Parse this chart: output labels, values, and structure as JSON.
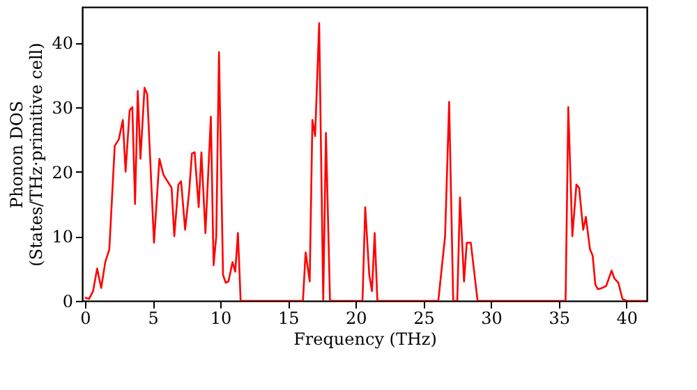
{
  "chart_data": {
    "type": "line",
    "xlabel": "Frequency (THz)",
    "ylabel": "Phonon DOS\n(States/THz·primitive cell)",
    "x": [
      0,
      0.3,
      0.6,
      0.9,
      1.2,
      1.5,
      1.8,
      2.2,
      2.5,
      2.8,
      3.0,
      3.3,
      3.5,
      3.7,
      3.9,
      4.1,
      4.4,
      4.6,
      5.1,
      5.5,
      5.8,
      6.1,
      6.4,
      6.6,
      6.9,
      7.1,
      7.4,
      7.7,
      7.9,
      8.1,
      8.4,
      8.6,
      8.9,
      9.3,
      9.5,
      9.7,
      9.9,
      10.2,
      10.4,
      10.6,
      10.9,
      11.1,
      11.3,
      11.5,
      16.1,
      16.3,
      16.6,
      16.8,
      17.0,
      17.3,
      17.6,
      17.8,
      18.1,
      20.5,
      20.7,
      21.0,
      21.2,
      21.4,
      21.6,
      26.1,
      26.6,
      26.9,
      27.2,
      27.5,
      27.7,
      28.0,
      28.2,
      28.5,
      29.0,
      35.5,
      35.7,
      36.0,
      36.3,
      36.5,
      36.8,
      37.0,
      37.3,
      37.5,
      37.7,
      37.9,
      38.2,
      38.5,
      38.9,
      39.1,
      39.4,
      39.7,
      40.0,
      41.5
    ],
    "series": [
      {
        "color": "#ff0000",
        "values": [
          0.5,
          0.3,
          1.5,
          5,
          2,
          6,
          8,
          24,
          25,
          28,
          20,
          29.5,
          30,
          15,
          32.5,
          22,
          33,
          32,
          9,
          22,
          19.5,
          18.5,
          17.5,
          10,
          18,
          18.5,
          11,
          17,
          22.8,
          23,
          14.5,
          23,
          10.5,
          28.5,
          5.5,
          10,
          38.5,
          4,
          2.8,
          3,
          6,
          4.5,
          10.5,
          0,
          0,
          7.5,
          3,
          28,
          25.5,
          43,
          0,
          26,
          0,
          0,
          14.5,
          4,
          1.5,
          10.5,
          0,
          0,
          10,
          30.8,
          0,
          0,
          16,
          3,
          9,
          9,
          0,
          0,
          30,
          10,
          18,
          17.5,
          11,
          13,
          8,
          7,
          2.5,
          1.8,
          2,
          2.3,
          4.7,
          3.5,
          2.8,
          0.3,
          0,
          0
        ]
      }
    ],
    "xlim": [
      -0.2,
      41.5
    ],
    "ylim": [
      0,
      45.5
    ],
    "xticks": [
      0,
      5,
      10,
      15,
      20,
      25,
      30,
      35,
      40
    ],
    "yticks": [
      0,
      10,
      20,
      30,
      40
    ],
    "grid": false,
    "marker": "none",
    "line_style": "solid"
  }
}
